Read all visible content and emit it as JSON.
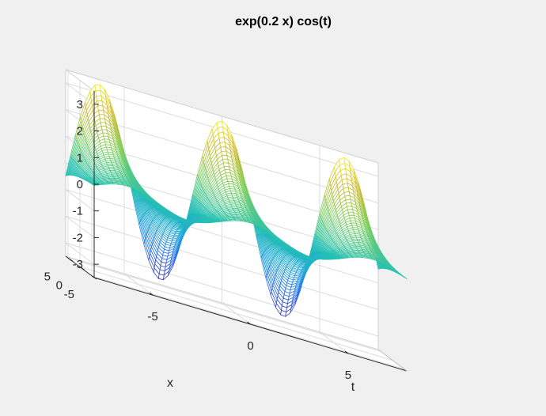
{
  "chart_data": {
    "type": "mesh",
    "title": "exp(0.2 x) cos(t)",
    "function": "exp(0.2*x)*cos(t)",
    "xlabel": "t",
    "ylabel": "x",
    "t_range": [
      -8,
      8
    ],
    "x_range": [
      -6,
      6
    ],
    "zlim": [
      -3.5,
      3.5
    ],
    "t_ticks": [
      "-5",
      "0",
      "5"
    ],
    "x_ticks": [
      "-5",
      "0",
      "5"
    ],
    "z_ticks": [
      "-3",
      "-2",
      "-1",
      "0",
      "1",
      "2",
      "3"
    ],
    "grid": true,
    "colormap": "parula",
    "colormap_stops": [
      "#3e26a8",
      "#2d6cf2",
      "#1aa8d6",
      "#28c2b0",
      "#7fcf5c",
      "#d4ba30",
      "#f9fb0e"
    ]
  }
}
